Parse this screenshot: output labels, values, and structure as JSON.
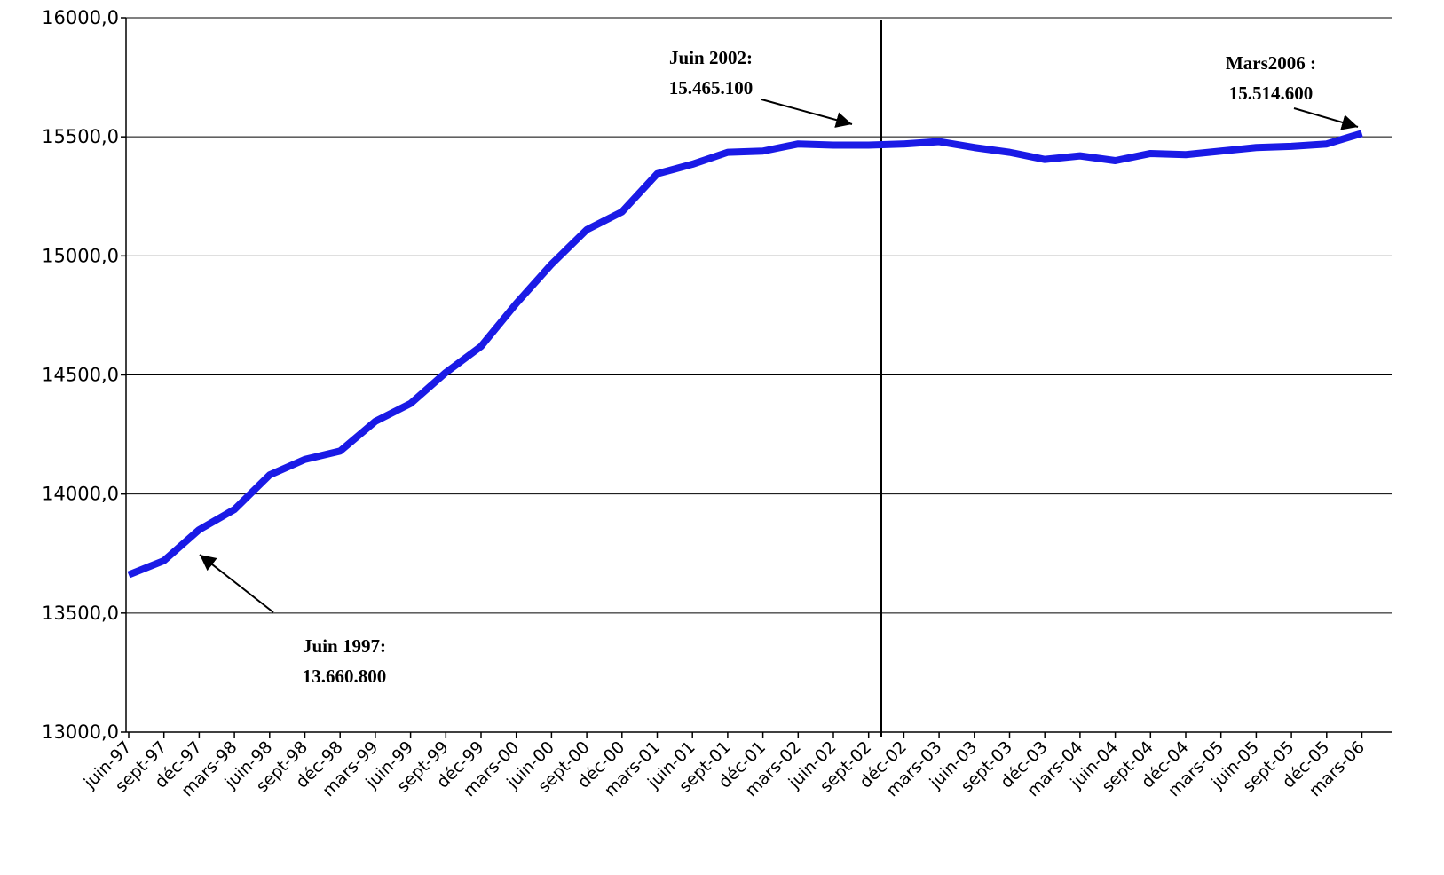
{
  "chart_data": {
    "type": "line",
    "categories": [
      "juin-97",
      "sept-97",
      "déc-97",
      "mars-98",
      "juin-98",
      "sept-98",
      "déc-98",
      "mars-99",
      "juin-99",
      "sept-99",
      "déc-99",
      "mars-00",
      "juin-00",
      "sept-00",
      "déc-00",
      "mars-01",
      "juin-01",
      "sept-01",
      "déc-01",
      "mars-02",
      "juin-02",
      "sept-02",
      "déc-02",
      "mars-03",
      "juin-03",
      "sept-03",
      "déc-03",
      "mars-04",
      "juin-04",
      "sept-04",
      "déc-04",
      "mars-05",
      "juin-05",
      "sept-05",
      "déc-05",
      "mars-06"
    ],
    "series": [
      {
        "color": "#1a1ae6",
        "values": [
          13660.8,
          13720,
          13850,
          13935,
          14080,
          14145,
          14180,
          14305,
          14380,
          14510,
          14620,
          14800,
          14965,
          15110,
          15185,
          15345,
          15385,
          15435,
          15440,
          15470,
          15465.1,
          15465,
          15470,
          15480,
          15455,
          15435,
          15405,
          15420,
          15400,
          15430,
          15425,
          15440,
          15455,
          15460,
          15470,
          15514.6
        ]
      }
    ],
    "ylim": [
      13000,
      16000
    ],
    "yticks": [
      {
        "value": 13000,
        "label": "13000,0"
      },
      {
        "value": 13500,
        "label": "13500,0"
      },
      {
        "value": 14000,
        "label": "14000,0"
      },
      {
        "value": 14500,
        "label": "14500,0"
      },
      {
        "value": 15000,
        "label": "15000,0"
      },
      {
        "value": 15500,
        "label": "15500,0"
      },
      {
        "value": 16000,
        "label": "16000,0"
      }
    ],
    "grid": true,
    "annotations": [
      [
        "Juin 1997:",
        "13.660.800"
      ],
      [
        "Juin 2002:",
        "15.465.100"
      ],
      [
        "Mars2006 :",
        "15.514.600"
      ]
    ]
  }
}
